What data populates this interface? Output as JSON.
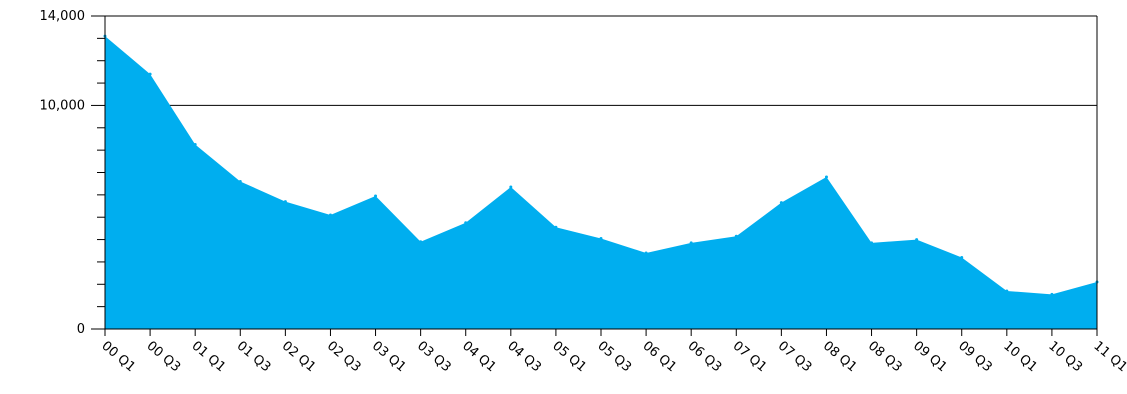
{
  "chart_data": {
    "type": "area",
    "title": "",
    "xlabel": "",
    "ylabel": "",
    "categories": [
      "00 Q1",
      "00 Q3",
      "01 Q1",
      "01 Q3",
      "02 Q1",
      "02 Q3",
      "03 Q1",
      "03 Q3",
      "04 Q1",
      "04 Q3",
      "05 Q1",
      "05 Q3",
      "06 Q1",
      "06 Q3",
      "07 Q1",
      "07 Q3",
      "08 Q1",
      "08 Q3",
      "09 Q1",
      "09 Q3",
      "10 Q1",
      "10 Q3",
      "11 Q1"
    ],
    "values": [
      13100,
      11400,
      8250,
      6600,
      5700,
      5100,
      5950,
      3900,
      4750,
      6350,
      4550,
      4050,
      3400,
      3850,
      4150,
      5650,
      6800,
      3850,
      4000,
      3200,
      1700,
      1550,
      2100
    ],
    "ylim": [
      0,
      14000
    ],
    "yticks": [
      0,
      10000,
      14000
    ],
    "ytick_labels": [
      "0",
      "10,000",
      "14,000"
    ],
    "minor_ytick_step": 1000,
    "gridlines": [
      10000
    ],
    "colors": {
      "area": "#00aeef",
      "axis": "#000000",
      "grid": "#000000"
    }
  }
}
